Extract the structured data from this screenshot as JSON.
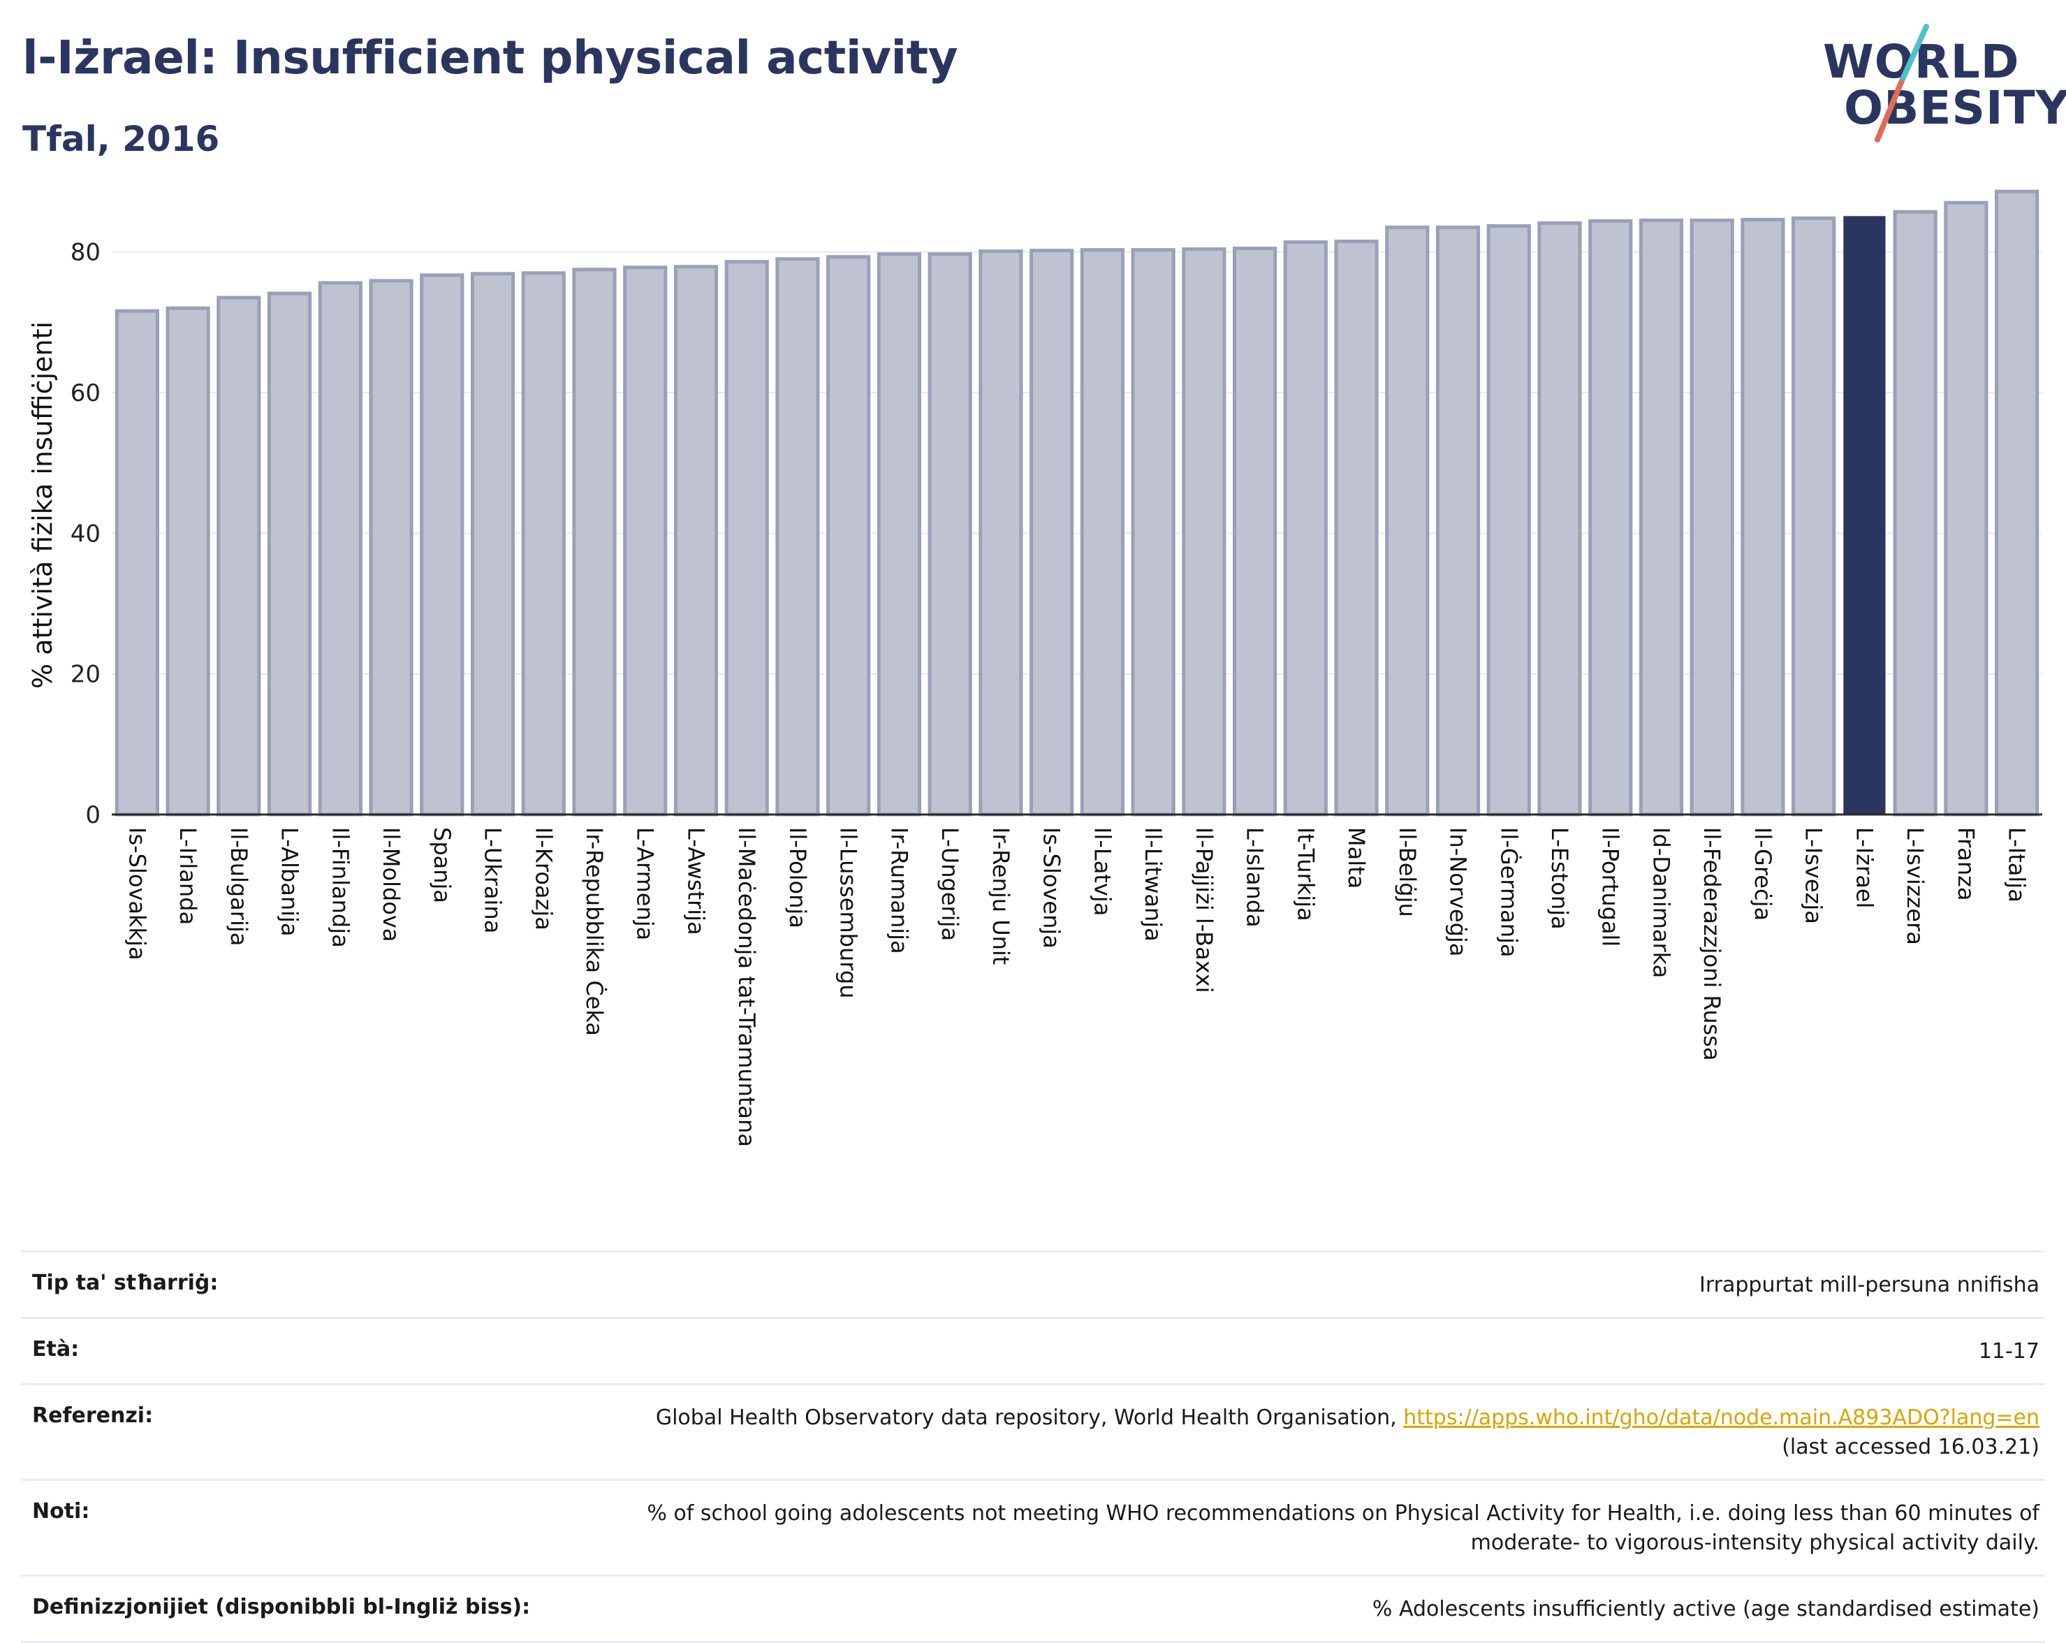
{
  "header": {
    "title": "l-Iżrael: Insufficient physical activity",
    "subtitle": "Tfal, 2016"
  },
  "logo": {
    "line1": "WORLD",
    "line2": "OBESITY"
  },
  "colors": {
    "bar": "#bfc3d1",
    "bar_border": "#9aa0b8",
    "highlight": "#2b3660",
    "title": "#2b3660",
    "grid": "#e6e9ef",
    "link": "#d8a500",
    "logo_slash_top": "#4fc1c9",
    "logo_slash_bottom": "#e36a5b"
  },
  "chart_data": {
    "type": "bar",
    "ylabel": "% attività fiżika insuffiċjenti",
    "xlabel": "",
    "ylim": [
      0,
      90
    ],
    "yticks": [
      0,
      20,
      40,
      60,
      80
    ],
    "grid": true,
    "highlight": "L-Iżrael",
    "categories": [
      "Is-Slovakkja",
      "L-Irlanda",
      "Il-Bulgarija",
      "L-Albanija",
      "Il-Finlandja",
      "Il-Moldova",
      "Spanja",
      "L-Ukraina",
      "Il-Kroazja",
      "Ir-Repubblika Ċeka",
      "L-Armenja",
      "L-Awstrija",
      "Il-Maċedonja tat-Tramuntana",
      "Il-Polonja",
      "Il-Lussemburgu",
      "Ir-Rumanija",
      "L-Ungerija",
      "Ir-Renju Unit",
      "Is-Slovenja",
      "Il-Latvja",
      "Il-Litwanja",
      "Il-Pajjiżi l-Baxxi",
      "L-Islanda",
      "It-Turkija",
      "Malta",
      "Il-Belġju",
      "In-Norveġja",
      "Il-Ġermanja",
      "L-Estonja",
      "Il-Portugall",
      "Id-Danimarka",
      "Il-Federazzjoni Russa",
      "Il-Greċja",
      "L-Isvezja",
      "L-Iżrael",
      "L-Isvizzera",
      "Franza",
      "L-Italja"
    ],
    "values": [
      71.6,
      72.0,
      73.5,
      74.1,
      75.6,
      75.9,
      76.7,
      76.9,
      77.0,
      77.5,
      77.8,
      77.9,
      78.6,
      79.0,
      79.3,
      79.7,
      79.7,
      80.1,
      80.2,
      80.3,
      80.3,
      80.4,
      80.5,
      81.4,
      81.5,
      83.5,
      83.5,
      83.7,
      84.1,
      84.4,
      84.5,
      84.5,
      84.6,
      84.8,
      85.0,
      85.7,
      87.0,
      88.6
    ]
  },
  "info": [
    {
      "key": "Tip ta' stħarriġ:",
      "value": "Irrappurtat mill-persuna nnifisha"
    },
    {
      "key": "Età:",
      "value": "11-17"
    },
    {
      "key": "Referenzi:",
      "value": "Global Health Observatory data repository, World Health Organisation,",
      "link": "https://apps.who.int/gho/data/node.main.A893ADO?lang=en",
      "value2": "(last accessed 16.03.21)"
    },
    {
      "key": "Noti:",
      "value": "% of school going adolescents not meeting WHO recommendations on Physical Activity for Health, i.e. doing less than 60 minutes of moderate- to vigorous-intensity physical activity daily."
    },
    {
      "key": "Definizzjonijiet (disponibbli bl-Ingliż biss):",
      "value": "% Adolescents insufficiently active (age standardised estimate)"
    }
  ]
}
